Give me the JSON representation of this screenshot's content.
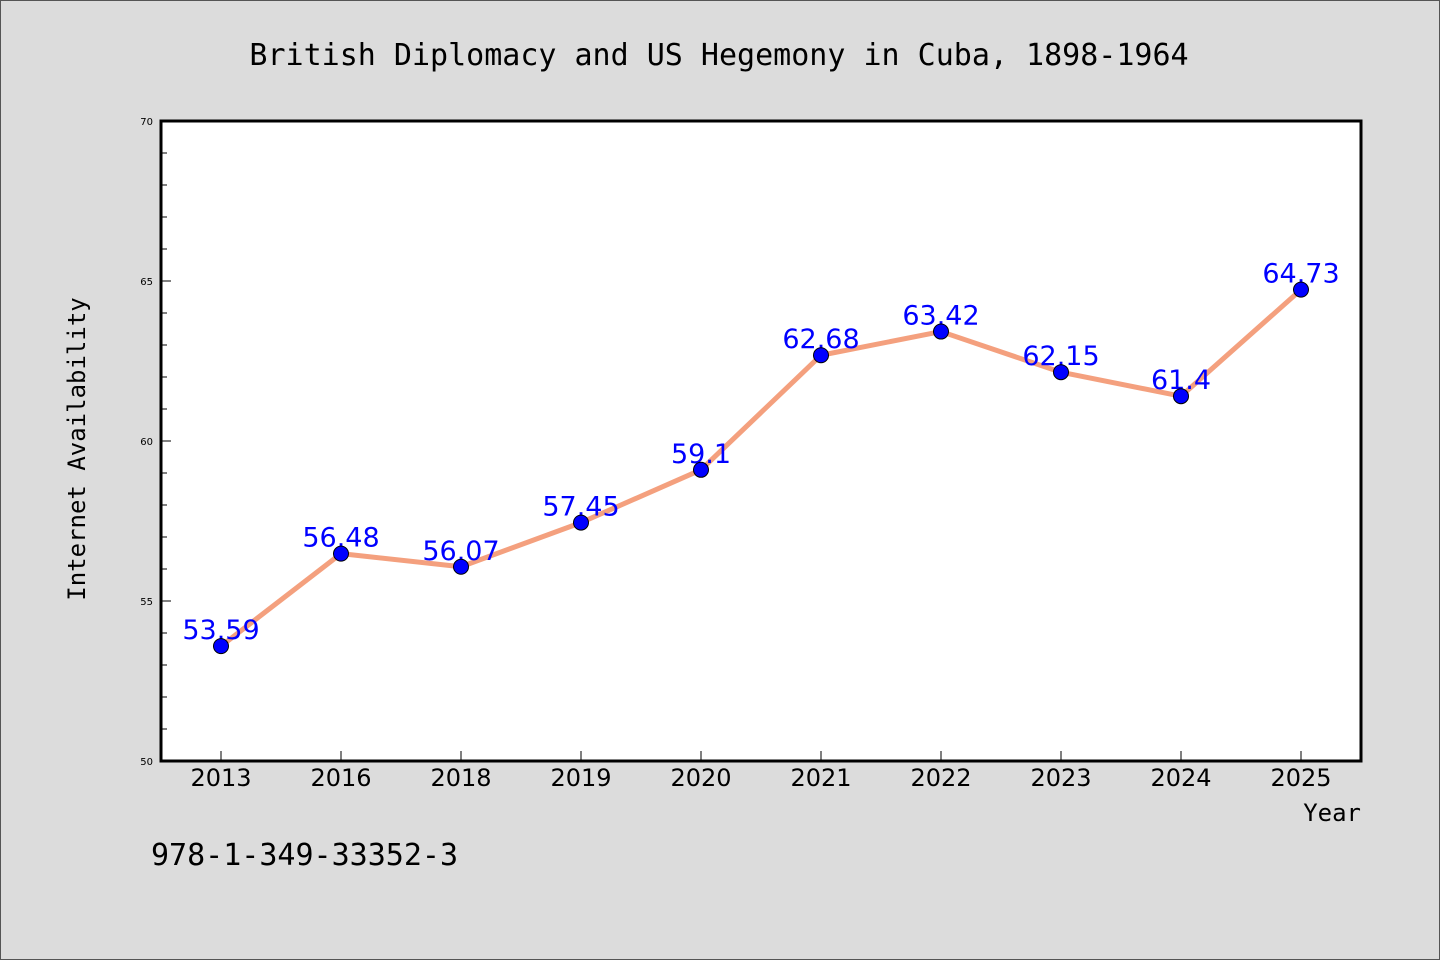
{
  "chart_data": {
    "type": "line",
    "title": "British Diplomacy and US Hegemony in Cuba, 1898-1964",
    "xlabel": "Year",
    "ylabel": "Internet Availability",
    "categories": [
      "2013",
      "2016",
      "2018",
      "2019",
      "2020",
      "2021",
      "2022",
      "2023",
      "2024",
      "2025"
    ],
    "series": [
      {
        "values": [
          53.59,
          56.48,
          56.07,
          57.45,
          59.1,
          62.68,
          63.42,
          62.15,
          61.4,
          64.73
        ],
        "data_labels": [
          "53.59",
          "56.48",
          "56.07",
          "57.45",
          "59.1",
          "62.68",
          "63.42",
          "62.15",
          "61.4",
          "64.73"
        ],
        "line_color": "#f4a07e",
        "marker_color": "#0000ff"
      }
    ],
    "ylim": [
      50,
      70
    ],
    "y_ticks": [
      50,
      55,
      60,
      65,
      70
    ],
    "y_minor_tick_step": 1,
    "grid": false,
    "legend": "none"
  },
  "footer_text": "978-1-349-33352-3",
  "colors": {
    "background": "#dcdcdc",
    "plot_area": "#ffffff",
    "line": "#f4a07e",
    "marker": "#0000ff",
    "data_label": "#0000ff"
  }
}
